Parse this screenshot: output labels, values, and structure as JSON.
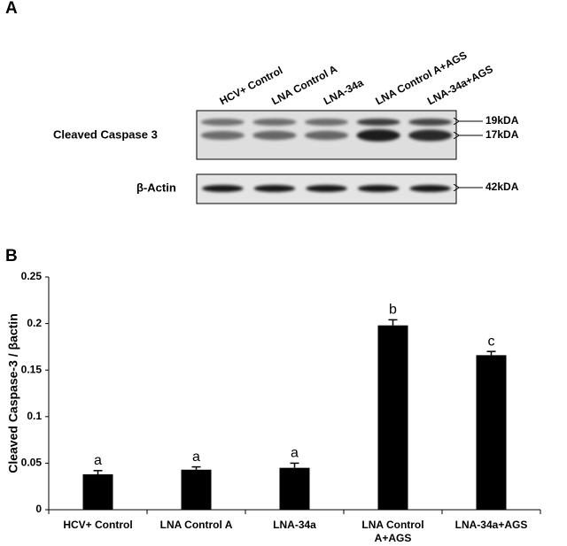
{
  "panel_a": {
    "label": "A",
    "lanes": [
      "HCV+ Control",
      "LNA Control A",
      "LNA-34a",
      "LNA Control A+AGS",
      "LNA-34a+AGS"
    ],
    "rows": [
      {
        "label": "Cleaved Caspase 3",
        "markers": [
          "19kDA",
          "17kDA"
        ]
      },
      {
        "label": "β-Actin",
        "markers": [
          "42kDA"
        ]
      }
    ]
  },
  "chart_data": {
    "type": "bar",
    "panel_label": "B",
    "y_label": "Cleaved Caspase-3 / βactin",
    "categories": [
      "HCV+ Control",
      "LNA Control A",
      "LNA-34a",
      "LNA Control A+AGS",
      "LNA-34a+AGS"
    ],
    "values": [
      0.038,
      0.043,
      0.045,
      0.198,
      0.166
    ],
    "errors": [
      0.004,
      0.003,
      0.005,
      0.006,
      0.004
    ],
    "annotations": [
      "a",
      "a",
      "a",
      "b",
      "c"
    ],
    "color": "#000000",
    "ylim": [
      0,
      0.25
    ],
    "yticks": [
      0,
      0.05,
      0.1,
      0.15,
      0.2,
      0.25
    ]
  }
}
